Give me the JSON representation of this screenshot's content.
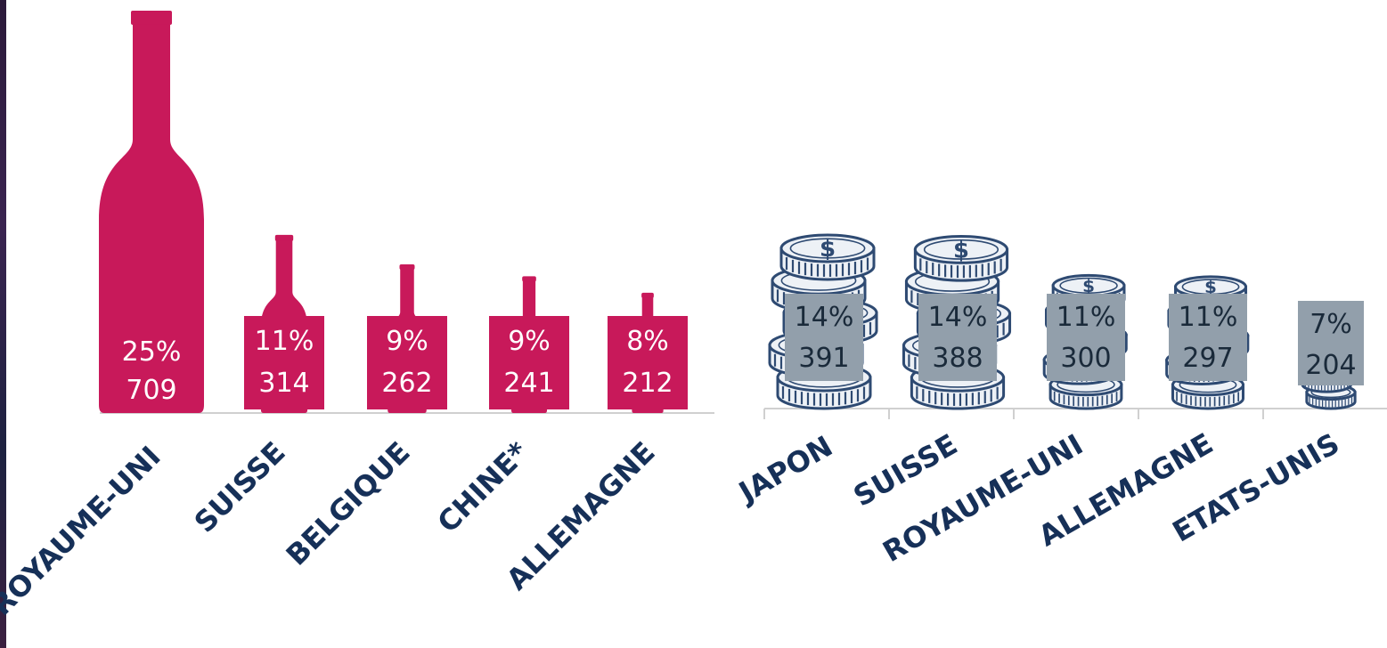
{
  "colors": {
    "wine": "#c8195a",
    "coin_fill": "#edf1f6",
    "coin_stroke": "#2e4a72",
    "label_box": "#929fab",
    "label_text_dark": "#1a2a3a",
    "category_text": "#163058",
    "axis": "#d0d0d0"
  },
  "icons": {
    "bottle": "wine-bottle-icon",
    "coins": "coin-stack-icon"
  },
  "chart_data": [
    {
      "type": "bar",
      "marker": "wine-bottle",
      "categories": [
        "ROYAUME-UNI",
        "SUISSE",
        "BELGIQUE",
        "CHINE*",
        "ALLEMAGNE"
      ],
      "values": [
        709,
        314,
        262,
        241,
        212
      ],
      "percents": [
        "25%",
        "11%",
        "9%",
        "9%",
        "8%"
      ],
      "value_labels": [
        "709",
        "314",
        "262",
        "241",
        "212"
      ],
      "ylim": [
        0,
        709
      ]
    },
    {
      "type": "bar",
      "marker": "coin-stack",
      "categories": [
        "JAPON",
        "SUISSE",
        "ROYAUME-UNI",
        "ALLEMAGNE",
        "ETATS-UNIS"
      ],
      "values": [
        391,
        388,
        300,
        297,
        204
      ],
      "percents": [
        "14%",
        "14%",
        "11%",
        "11%",
        "7%"
      ],
      "value_labels": [
        "391",
        "388",
        "300",
        "297",
        "204"
      ],
      "ylim": [
        0,
        391
      ]
    }
  ]
}
